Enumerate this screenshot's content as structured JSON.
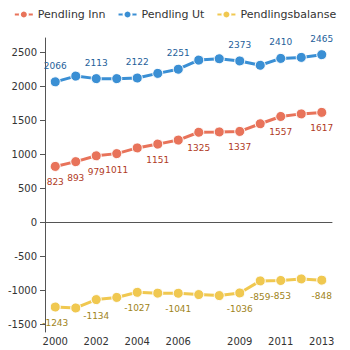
{
  "chart_data": {
    "type": "line",
    "categories": [
      "2000",
      null,
      "2002",
      null,
      "2004",
      null,
      "2006",
      null,
      null,
      "2009",
      null,
      "2011",
      null,
      "2013"
    ],
    "series": [
      {
        "name": "Pendling Inn",
        "color": "#e8735a",
        "marker": "circle",
        "values": [
          823,
          893,
          979,
          1011,
          1095,
          1151,
          1210,
          1325,
          1330,
          1337,
          1450,
          1557,
          1595,
          1617
        ],
        "value_labels": [
          "823",
          "893",
          "979",
          "1011",
          null,
          "1151",
          null,
          "1325",
          null,
          "1337",
          null,
          "1557",
          null,
          "1617"
        ]
      },
      {
        "name": "Pendling Ut",
        "color": "#3a8fd4",
        "marker": "circle",
        "values": [
          2066,
          2150,
          2113,
          2113,
          2122,
          2190,
          2251,
          2385,
          2405,
          2373,
          2309,
          2410,
          2425,
          2465
        ],
        "value_labels": [
          "2066",
          null,
          "2113",
          null,
          "2122",
          null,
          "2251",
          null,
          null,
          "2373",
          null,
          "2410",
          null,
          "2465"
        ]
      },
      {
        "name": "Pendlingsbalanse",
        "color": "#f0c850",
        "marker": "circle",
        "values": [
          -1243,
          -1257,
          -1134,
          -1102,
          -1027,
          -1039,
          -1041,
          -1060,
          -1075,
          -1036,
          -859,
          -853,
          -830,
          -848
        ],
        "value_labels": [
          "-1243",
          null,
          "-1134",
          null,
          "-1027",
          null,
          "-1041",
          null,
          null,
          "-1036",
          "-859",
          "-853",
          null,
          "-848"
        ]
      }
    ],
    "ylim": [
      -1610,
      2710
    ],
    "yticks": [
      -1500,
      -1000,
      -500,
      0,
      500,
      1000,
      1500,
      2000,
      2500
    ],
    "grid": false,
    "legend": "top",
    "data_labels": true
  }
}
